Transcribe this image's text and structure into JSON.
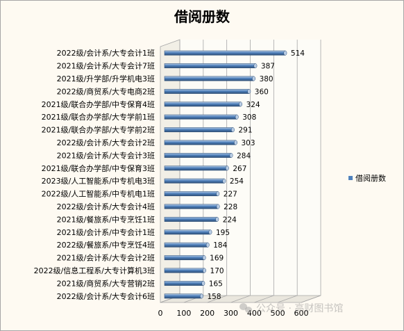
{
  "chart_data": {
    "type": "bar",
    "orientation": "horizontal",
    "title": "借阅册数",
    "categories": [
      "2022级/会计系/大专会计1班",
      "2021级/会计系/大专会计7班",
      "2021级/升学部/升学机电3班",
      "2022级/商贸系/大专电商2班",
      "2021级/联合办学部/中专保育4班",
      "2021级/联合办学部/大专学前1班",
      "2021级/联合办学部/大专学前2班",
      "2022级/会计系/大专会计2班",
      "2021级/会计系/大专会计3班",
      "2021级/联合办学部/中专保育3班",
      "2023级/人工智能系/中专机电3班",
      "2022级/人工智能系/中专机电1班",
      "2022级/会计系/大专会计4班",
      "2021级/餐旅系/中专烹饪1班",
      "2021级/会计系/中专会计1班",
      "2022级/餐旅系/中专烹饪4班",
      "2021级/会计系/大专会计2班",
      "2022级/信息工程系/大专计算机3班",
      "2021级/商贸系/大专营销2班",
      "2022级/会计系/大专会计6班"
    ],
    "series": [
      {
        "name": "借阅册数",
        "values": [
          514,
          387,
          380,
          360,
          324,
          308,
          291,
          303,
          284,
          267,
          254,
          227,
          228,
          224,
          195,
          184,
          169,
          170,
          165,
          158
        ]
      }
    ],
    "xlim": [
      0,
      600
    ],
    "x_ticks": [
      "0",
      "100",
      "200",
      "300",
      "400",
      "500",
      "600"
    ],
    "grid": true,
    "legend_position": "right",
    "colors": {
      "bar": "#4f81bd",
      "bar_dark": "#2c4d75",
      "bar_light": "#b9cde5",
      "background": "#fefaf2",
      "plot_wall": "#fdfcf7",
      "gridline": "#a6a6a6"
    }
  },
  "watermark": {
    "logo_icon": "wechat-icon",
    "text": "公众号 · 高财图书馆"
  }
}
